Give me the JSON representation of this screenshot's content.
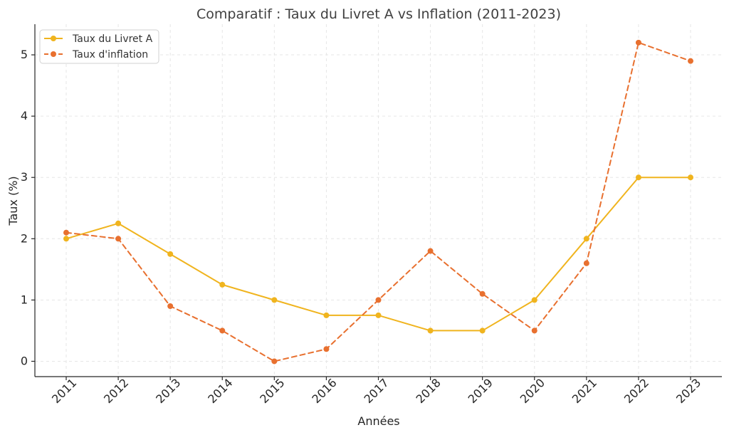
{
  "chart_data": {
    "type": "line",
    "title": "Comparatif : Taux du Livret A vs Inflation (2011-2023)",
    "xlabel": "Années",
    "ylabel": "Taux (%)",
    "categories": [
      "2011",
      "2012",
      "2013",
      "2014",
      "2015",
      "2016",
      "2017",
      "2018",
      "2019",
      "2020",
      "2021",
      "2022",
      "2023"
    ],
    "yticks": [
      "0",
      "1",
      "2",
      "3",
      "4",
      "5"
    ],
    "ylim": [
      -0.25,
      5.5
    ],
    "grid": true,
    "legend_position": "top-left",
    "series": [
      {
        "name": "Taux du Livret A",
        "values": [
          2.0,
          2.25,
          1.75,
          1.25,
          1.0,
          0.75,
          0.75,
          0.5,
          0.5,
          1.0,
          2.0,
          3.0,
          3.0
        ],
        "color": "#f0b41e",
        "line_style": "solid"
      },
      {
        "name": "Taux d'inflation",
        "values": [
          2.1,
          2.0,
          0.9,
          0.5,
          0.0,
          0.2,
          1.0,
          1.8,
          1.1,
          0.5,
          1.6,
          5.2,
          4.9
        ],
        "color": "#e8702f",
        "line_style": "dashed"
      }
    ]
  }
}
